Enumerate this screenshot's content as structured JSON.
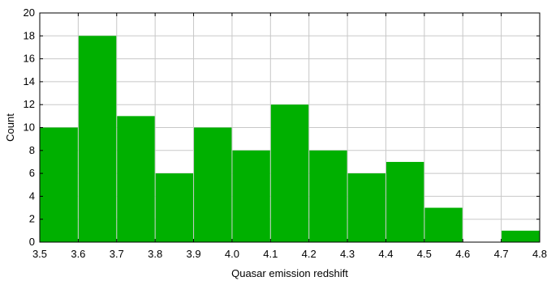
{
  "chart_data": {
    "type": "bar",
    "xlabel": "Quasar emission redshift",
    "ylabel": "Count",
    "xlim": [
      3.5,
      4.8
    ],
    "ylim": [
      0,
      20
    ],
    "bin_edges": [
      3.5,
      3.6,
      3.7,
      3.8,
      3.9,
      4.0,
      4.1,
      4.2,
      4.3,
      4.4,
      4.5,
      4.6,
      4.7,
      4.8
    ],
    "values": [
      10,
      18,
      11,
      6,
      10,
      8,
      12,
      8,
      6,
      7,
      3,
      0,
      1
    ],
    "x_ticks": [
      "3.5",
      "3.6",
      "3.7",
      "3.8",
      "3.9",
      "4.0",
      "4.1",
      "4.2",
      "4.3",
      "4.4",
      "4.5",
      "4.6",
      "4.7",
      "4.8"
    ],
    "y_ticks": [
      "0",
      "2",
      "4",
      "6",
      "8",
      "10",
      "12",
      "14",
      "16",
      "18",
      "20"
    ],
    "grid": true,
    "bar_color": "#00b000",
    "grid_color": "#c8c8c8",
    "axis_color": "#000000"
  }
}
